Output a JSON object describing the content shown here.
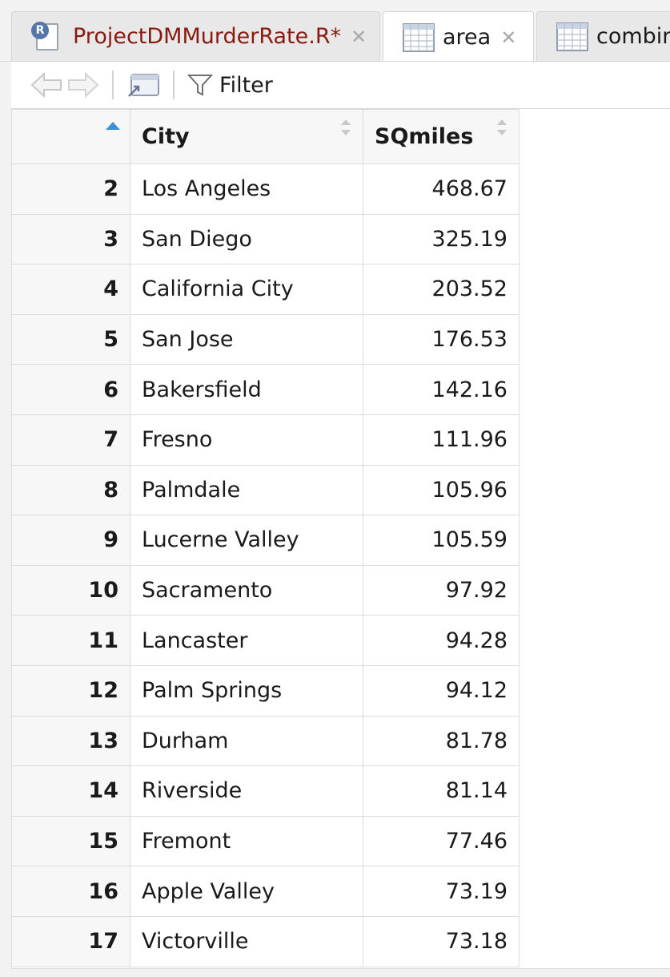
{
  "tabs": [
    {
      "label": "ProjectDMMurderRate.R*",
      "icon": "r-script-icon",
      "active": false,
      "label_color": "#8a1a10"
    },
    {
      "label": "area",
      "icon": "data-grid-icon",
      "active": true
    },
    {
      "label": "combin",
      "icon": "data-grid-icon",
      "active": false
    }
  ],
  "toolbar": {
    "filter_label": "Filter"
  },
  "table": {
    "columns": [
      "",
      "City",
      "SQmiles"
    ],
    "sorted_column": 0,
    "sort_direction": "ascending",
    "rows": [
      {
        "idx": "2",
        "city": "Los Angeles",
        "sqmiles": "468.67"
      },
      {
        "idx": "3",
        "city": "San Diego",
        "sqmiles": "325.19"
      },
      {
        "idx": "4",
        "city": "California City",
        "sqmiles": "203.52"
      },
      {
        "idx": "5",
        "city": "San Jose",
        "sqmiles": "176.53"
      },
      {
        "idx": "6",
        "city": "Bakersfield",
        "sqmiles": "142.16"
      },
      {
        "idx": "7",
        "city": "Fresno",
        "sqmiles": "111.96"
      },
      {
        "idx": "8",
        "city": "Palmdale",
        "sqmiles": "105.96"
      },
      {
        "idx": "9",
        "city": "Lucerne Valley",
        "sqmiles": "105.59"
      },
      {
        "idx": "10",
        "city": "Sacramento",
        "sqmiles": "97.92"
      },
      {
        "idx": "11",
        "city": "Lancaster",
        "sqmiles": "94.28"
      },
      {
        "idx": "12",
        "city": "Palm Springs",
        "sqmiles": "94.12"
      },
      {
        "idx": "13",
        "city": "Durham",
        "sqmiles": "81.78"
      },
      {
        "idx": "14",
        "city": "Riverside",
        "sqmiles": "81.14"
      },
      {
        "idx": "15",
        "city": "Fremont",
        "sqmiles": "77.46"
      },
      {
        "idx": "16",
        "city": "Apple Valley",
        "sqmiles": "73.19"
      },
      {
        "idx": "17",
        "city": "Victorville",
        "sqmiles": "73.18"
      }
    ]
  },
  "colors": {
    "accent_sort": "#3f8fd6",
    "script_tab_text": "#8a1a10"
  }
}
